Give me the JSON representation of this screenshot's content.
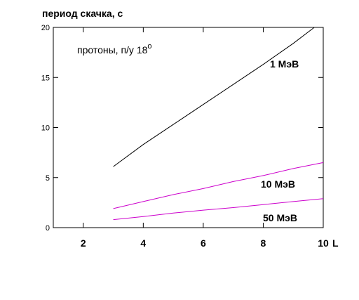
{
  "chart_data": {
    "type": "line",
    "ylabel": "период скачка, с",
    "xunit": "L",
    "annotation_main": "протоны, п/у 18",
    "annotation_sup": "о",
    "xlim": [
      1,
      10
    ],
    "ylim": [
      0,
      20
    ],
    "xticks": [
      2,
      4,
      6,
      8,
      10
    ],
    "yticks": [
      0,
      5,
      10,
      15,
      20
    ],
    "grid": false,
    "series": [
      {
        "name": "1 МэВ",
        "color": "#000000",
        "x": [
          3.0,
          4.0,
          5.0,
          6.0,
          7.0,
          8.0,
          9.0,
          9.7
        ],
        "y": [
          6.1,
          8.3,
          10.3,
          12.3,
          14.3,
          16.3,
          18.4,
          20.0
        ]
      },
      {
        "name": "10 МэВ",
        "color": "#cc00cc",
        "x": [
          3.0,
          4.0,
          5.0,
          6.0,
          7.0,
          8.0,
          9.0,
          10.0
        ],
        "y": [
          1.9,
          2.6,
          3.3,
          3.9,
          4.6,
          5.2,
          5.9,
          6.5
        ]
      },
      {
        "name": "50 МэВ",
        "color": "#cc00cc",
        "x": [
          3.0,
          4.0,
          5.0,
          6.0,
          7.0,
          8.0,
          9.0,
          10.0
        ],
        "y": [
          0.8,
          1.1,
          1.45,
          1.75,
          2.0,
          2.3,
          2.6,
          2.9
        ]
      }
    ]
  }
}
